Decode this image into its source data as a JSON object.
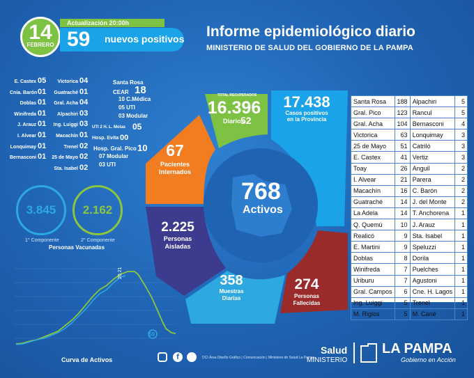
{
  "header": {
    "day": "14",
    "month": "FEBRERO",
    "update_label": "Actualización 20:00h",
    "new_positive_count": "59",
    "new_positive_label": "nuevos positivos",
    "title": "Informe epidemiológico diario",
    "subtitle": "MINISTERIO DE SALUD DEL GOBIERNO DE LA PAMPA"
  },
  "left_list": [
    {
      "name": "E. Castex",
      "value": "05"
    },
    {
      "name": "Cnia. Barón",
      "value": "01"
    },
    {
      "name": "Doblas",
      "value": "01"
    },
    {
      "name": "Winifreda",
      "value": "01"
    },
    {
      "name": "J. Arauz",
      "value": "01"
    },
    {
      "name": "I. Alvear",
      "value": "01"
    },
    {
      "name": "Lonquimay",
      "value": "01"
    },
    {
      "name": "Bernasconi",
      "value": "01"
    }
  ],
  "mid_list": [
    {
      "name": "Victorica",
      "value": "04"
    },
    {
      "name": "Guatraché",
      "value": "01"
    },
    {
      "name": "Gral. Acha",
      "value": "04"
    },
    {
      "name": "Alpachiri",
      "value": "03"
    },
    {
      "name": "Ing. Luiggi",
      "value": "03"
    },
    {
      "name": "Macachín",
      "value": "01"
    },
    {
      "name": "Trenel",
      "value": "02"
    },
    {
      "name": "25 de Mayo",
      "value": "02"
    },
    {
      "name": "Sta. Isabel",
      "value": "02"
    }
  ],
  "hospitals": {
    "santa_rosa": "Santa Rosa",
    "cear": "CEAR",
    "cear_value": "18",
    "cear_items": [
      "10 C.Médica",
      "05 UTI",
      "03 Modular"
    ],
    "uti_molas": "UTI 2 H. L. Molas",
    "uti_molas_value": "05",
    "evita": "Hosp. Evita",
    "evita_value": "00",
    "pico": "Hosp. Gral. Pico",
    "pico_value": "10",
    "pico_items": [
      "07 Modular",
      "03 UTI"
    ]
  },
  "vaccination": {
    "first_value": "3.845",
    "first_label": "1° Componente",
    "second_value": "2.162",
    "second_label": "2° Componente",
    "caption": "Personas Vacunadas",
    "first_color": "#2ea8e0",
    "second_color": "#8cc63f"
  },
  "curve": {
    "title": "Curva de Activos",
    "peak_label": "20.21",
    "last_label": "59"
  },
  "donut": {
    "center_value": "768",
    "center_label": "Activos",
    "recovered_title": "TOTAL RECUPERADOS",
    "recovered_value": "16.396",
    "recovered_daily_label": "Diarios",
    "recovered_daily_value": "52",
    "cases_value": "17.438",
    "cases_label_1": "Casos positivos",
    "cases_label_2": "en la Provincia",
    "hospitalized_value": "67",
    "hospitalized_label_1": "Pacientes",
    "hospitalized_label_2": "Internados",
    "isolated_value": "2.225",
    "isolated_label_1": "Personas",
    "isolated_label_2": "Aisladas",
    "samples_value": "358",
    "samples_label_1": "Muestras",
    "samples_label_2": "Diarias",
    "deaths_value": "274",
    "deaths_label_1": "Personas",
    "deaths_label_2": "Fallecidas",
    "colors": {
      "recovered": "#7dc242",
      "cases": "#1aa3e8",
      "hospitalized": "#f27d21",
      "isolated": "#3d3b8e",
      "samples": "#2ea8e0",
      "deaths": "#9b2a2a"
    }
  },
  "table": [
    [
      "Santa Rosa",
      "188",
      "Alpachiri",
      "5"
    ],
    [
      "Gral. Pico",
      "123",
      "Rancul",
      "5"
    ],
    [
      "Gral. Acha",
      "104",
      "Bernasconi",
      "4"
    ],
    [
      "Victorica",
      "63",
      "Lonquimay",
      "3"
    ],
    [
      "25 de Mayo",
      "51",
      "Catriló",
      "3"
    ],
    [
      "E. Castex",
      "41",
      "Vertiz",
      "3"
    ],
    [
      "Toay",
      "26",
      "Anguil",
      "2"
    ],
    [
      "I. Alvear",
      "21",
      "Parera",
      "2"
    ],
    [
      "Macachín",
      "16",
      "C. Barón",
      "2"
    ],
    [
      "Guatraché",
      "14",
      "J. del Monte",
      "2"
    ],
    [
      "La Adela",
      "14",
      "T. Anchorena",
      "1"
    ],
    [
      "Q. Quemú",
      "10",
      "J. Arauz",
      "1"
    ],
    [
      "Realicó",
      "9",
      "Sta. Isabel",
      "1"
    ],
    [
      "E. Martini",
      "9",
      "Speluzzi",
      "1"
    ],
    [
      "Doblas",
      "8",
      "Dorila",
      "1"
    ],
    [
      "Winifreda",
      "7",
      "Puelches",
      "1"
    ],
    [
      "Uriburu",
      "7",
      "Agustoni",
      "1"
    ],
    [
      "Gral. Campos",
      "6",
      "Cne. H. Lagos",
      "1"
    ],
    [
      "Ing. Luiggi",
      "5",
      "Trenel",
      "1"
    ],
    [
      "M. Riglos",
      "5",
      "M. Cané",
      "1"
    ]
  ],
  "footer": {
    "credits": "DCI Área Diseño Gráfico | Comunicación | Ministerio de Salud La Pampa",
    "salud": "Salud",
    "ministerio": "MINISTERIO",
    "la_pampa": "LA PAMPA",
    "slogan": "Gobierno en Acción"
  }
}
